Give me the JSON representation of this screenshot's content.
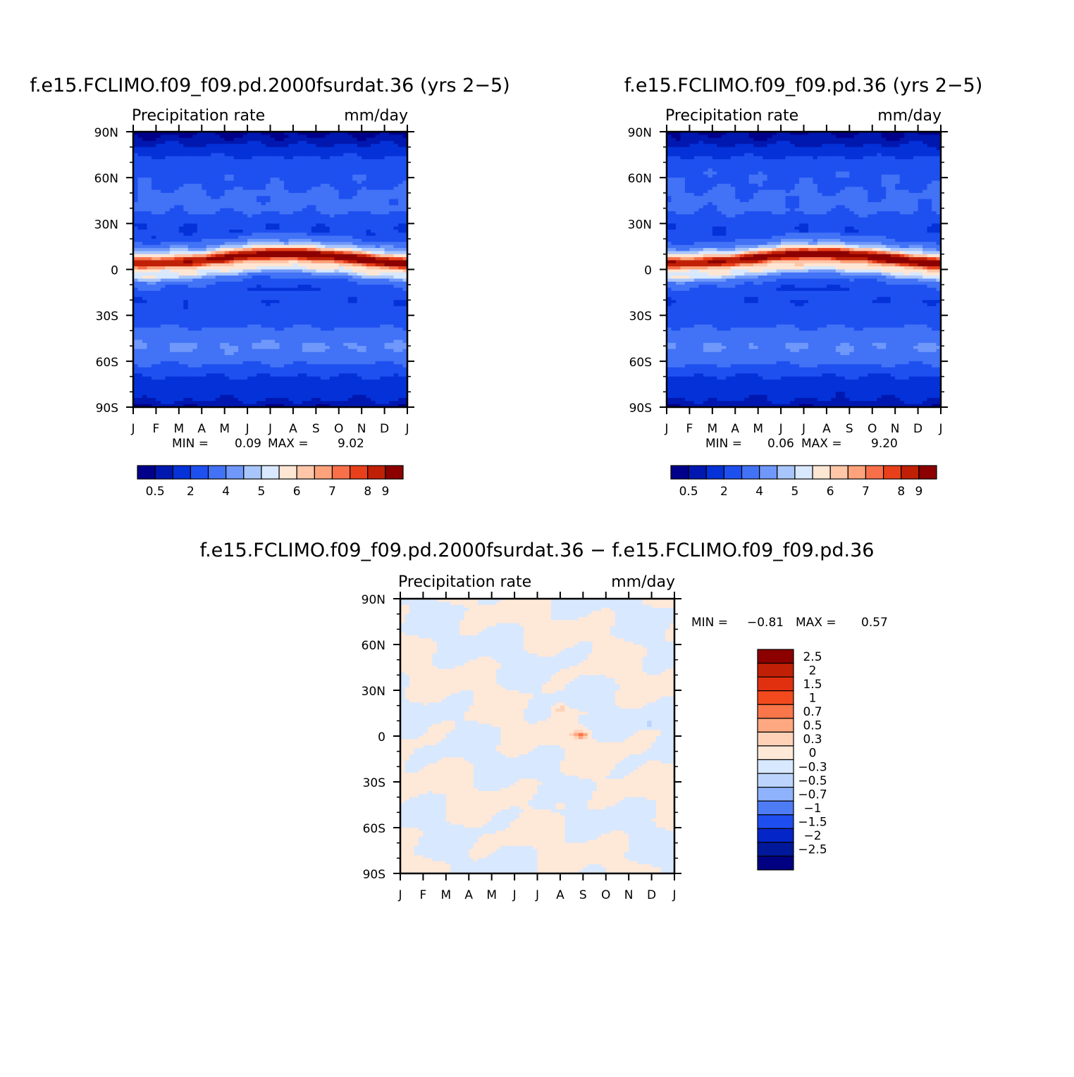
{
  "chart_data": [
    {
      "type": "heatmap",
      "title": "f.e15.FCLIMO.f09_f09.pd.2000fsurdat.36 (yrs 2−5)",
      "left_label": "Precipitation rate",
      "right_label": "mm/day",
      "x_tick_labels": [
        "J",
        "F",
        "M",
        "A",
        "M",
        "J",
        "J",
        "A",
        "S",
        "O",
        "N",
        "D",
        "J"
      ],
      "y_tick_labels": [
        "90N",
        "60N",
        "30N",
        "0",
        "30S",
        "60S",
        "90S"
      ],
      "xlim": [
        0,
        12
      ],
      "ylim": [
        -90,
        90
      ],
      "stats": {
        "min_label": "MIN =",
        "min_value": "0.09",
        "max_label": "MAX =",
        "max_value": "9.02"
      },
      "colorbar": {
        "orientation": "horizontal",
        "tick_labels": [
          "0.5",
          "2",
          "4",
          "5",
          "6",
          "7",
          "8",
          "9"
        ],
        "colors": [
          "#00008a",
          "#0018b0",
          "#0432d8",
          "#1e50f0",
          "#4272f5",
          "#6f98fa",
          "#a9c6fc",
          "#d8e8fe",
          "#fee6d4",
          "#ffc6a8",
          "#fda27a",
          "#f8704a",
          "#e8401a",
          "#c02006",
          "#8c0000"
        ]
      },
      "zonal_profile": {
        "lat": [
          -90,
          -80,
          -70,
          -60,
          -50,
          -40,
          -30,
          -20,
          -10,
          -5,
          0,
          5,
          10,
          20,
          30,
          40,
          50,
          60,
          70,
          80,
          90
        ],
        "values": [
          0.4,
          1.2,
          2.2,
          3.2,
          3.9,
          3.5,
          2.2,
          1.9,
          3.6,
          5.6,
          5.0,
          7.0,
          4.8,
          2.4,
          2.2,
          3.0,
          3.3,
          2.9,
          2.2,
          1.3,
          0.5
        ]
      },
      "itcz_lat_by_month": [
        3,
        3,
        4,
        5,
        7,
        9,
        10,
        10,
        9,
        8,
        6,
        4,
        3
      ]
    },
    {
      "type": "heatmap",
      "title": "f.e15.FCLIMO.f09_f09.pd.36 (yrs 2−5)",
      "left_label": "Precipitation rate",
      "right_label": "mm/day",
      "x_tick_labels": [
        "J",
        "F",
        "M",
        "A",
        "M",
        "J",
        "J",
        "A",
        "S",
        "O",
        "N",
        "D",
        "J"
      ],
      "y_tick_labels": [
        "90N",
        "60N",
        "30N",
        "0",
        "30S",
        "60S",
        "90S"
      ],
      "xlim": [
        0,
        12
      ],
      "ylim": [
        -90,
        90
      ],
      "stats": {
        "min_label": "MIN =",
        "min_value": "0.06",
        "max_label": "MAX =",
        "max_value": "9.20"
      },
      "colorbar": {
        "orientation": "horizontal",
        "tick_labels": [
          "0.5",
          "2",
          "4",
          "5",
          "6",
          "7",
          "8",
          "9"
        ],
        "colors": [
          "#00008a",
          "#0018b0",
          "#0432d8",
          "#1e50f0",
          "#4272f5",
          "#6f98fa",
          "#a9c6fc",
          "#d8e8fe",
          "#fee6d4",
          "#ffc6a8",
          "#fda27a",
          "#f8704a",
          "#e8401a",
          "#c02006",
          "#8c0000"
        ]
      },
      "zonal_profile": {
        "lat": [
          -90,
          -80,
          -70,
          -60,
          -50,
          -40,
          -30,
          -20,
          -10,
          -5,
          0,
          5,
          10,
          20,
          30,
          40,
          50,
          60,
          70,
          80,
          90
        ],
        "values": [
          0.4,
          1.2,
          2.2,
          3.2,
          3.9,
          3.5,
          2.2,
          1.9,
          3.6,
          5.6,
          5.0,
          7.1,
          4.8,
          2.4,
          2.2,
          3.0,
          3.3,
          2.9,
          2.2,
          1.3,
          0.5
        ]
      },
      "itcz_lat_by_month": [
        3,
        3,
        4,
        5,
        7,
        9,
        10,
        10,
        9,
        8,
        6,
        4,
        3
      ]
    },
    {
      "type": "heatmap",
      "title": "f.e15.FCLIMO.f09_f09.pd.2000fsurdat.36 − f.e15.FCLIMO.f09_f09.pd.36",
      "left_label": "Precipitation rate",
      "right_label": "mm/day",
      "x_tick_labels": [
        "J",
        "F",
        "M",
        "A",
        "M",
        "J",
        "J",
        "A",
        "S",
        "O",
        "N",
        "D",
        "J"
      ],
      "y_tick_labels": [
        "90N",
        "60N",
        "30N",
        "0",
        "30S",
        "60S",
        "90S"
      ],
      "xlim": [
        0,
        12
      ],
      "ylim": [
        -90,
        90
      ],
      "stats": {
        "min_label": "MIN =",
        "min_value": "−0.81",
        "max_label": "MAX =",
        "max_value": "0.57"
      },
      "colorbar": {
        "orientation": "vertical",
        "tick_labels": [
          "2.5",
          "2",
          "1.5",
          "1",
          "0.7",
          "0.5",
          "0.3",
          "0",
          "−0.3",
          "−0.5",
          "−0.7",
          "−1",
          "−1.5",
          "−2",
          "−2.5"
        ],
        "colors": [
          "#8c0000",
          "#c02006",
          "#e03010",
          "#f24a1c",
          "#f8764a",
          "#fda880",
          "#ffd2b8",
          "#fee8d8",
          "#d8e8fe",
          "#bcd4fd",
          "#8eb2fb",
          "#4e7cf5",
          "#1e4ef0",
          "#0426c8",
          "#00189a",
          "#000080"
        ]
      },
      "min_value": -0.81,
      "max_value": 0.57
    }
  ]
}
